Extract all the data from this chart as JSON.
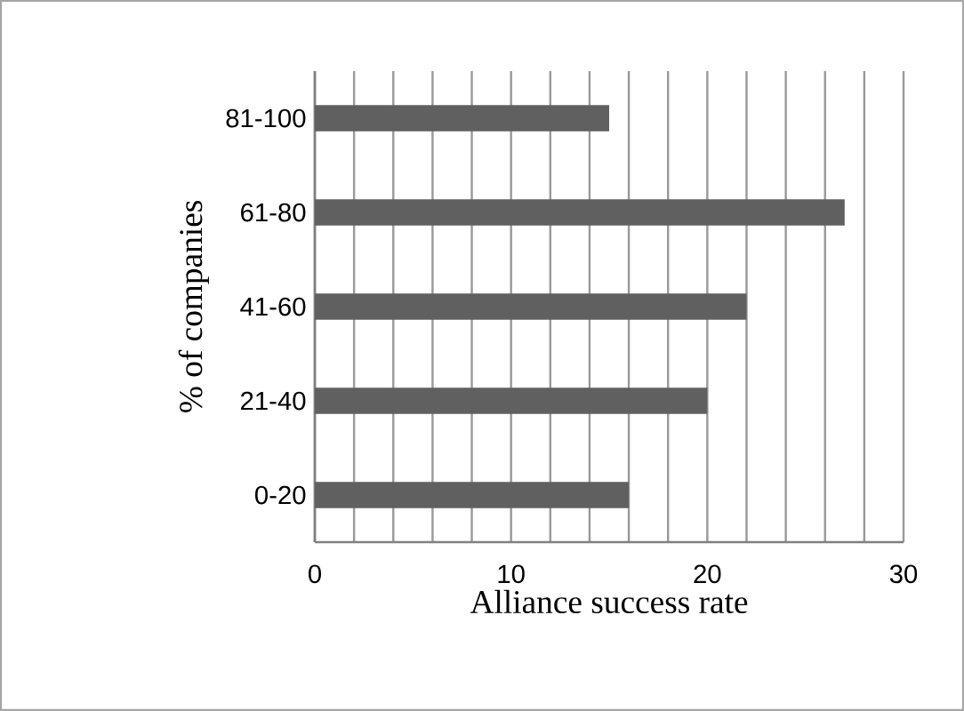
{
  "chart_data": {
    "type": "bar",
    "orientation": "horizontal",
    "xlabel": "Alliance success rate",
    "ylabel": "% of companies",
    "categories": [
      "81-100",
      "61-80",
      "41-60",
      "21-40",
      "0-20"
    ],
    "values": [
      15,
      27,
      22,
      20,
      16
    ],
    "color": "#606060",
    "xlim": [
      0,
      30
    ],
    "xticks": [
      0,
      {
        "value": 2,
        "label": null
      },
      {
        "value": 4,
        "label": null
      },
      {
        "value": 6,
        "label": null
      },
      {
        "value": 8,
        "label": null
      },
      10,
      {
        "value": 12,
        "label": null
      },
      {
        "value": 14,
        "label": null
      },
      {
        "value": 16,
        "label": null
      },
      {
        "value": 18,
        "label": null
      },
      20,
      {
        "value": 22,
        "label": null
      },
      {
        "value": 24,
        "label": null
      },
      {
        "value": 26,
        "label": null
      },
      {
        "value": 28,
        "label": null
      },
      30
    ],
    "grid": "x"
  }
}
